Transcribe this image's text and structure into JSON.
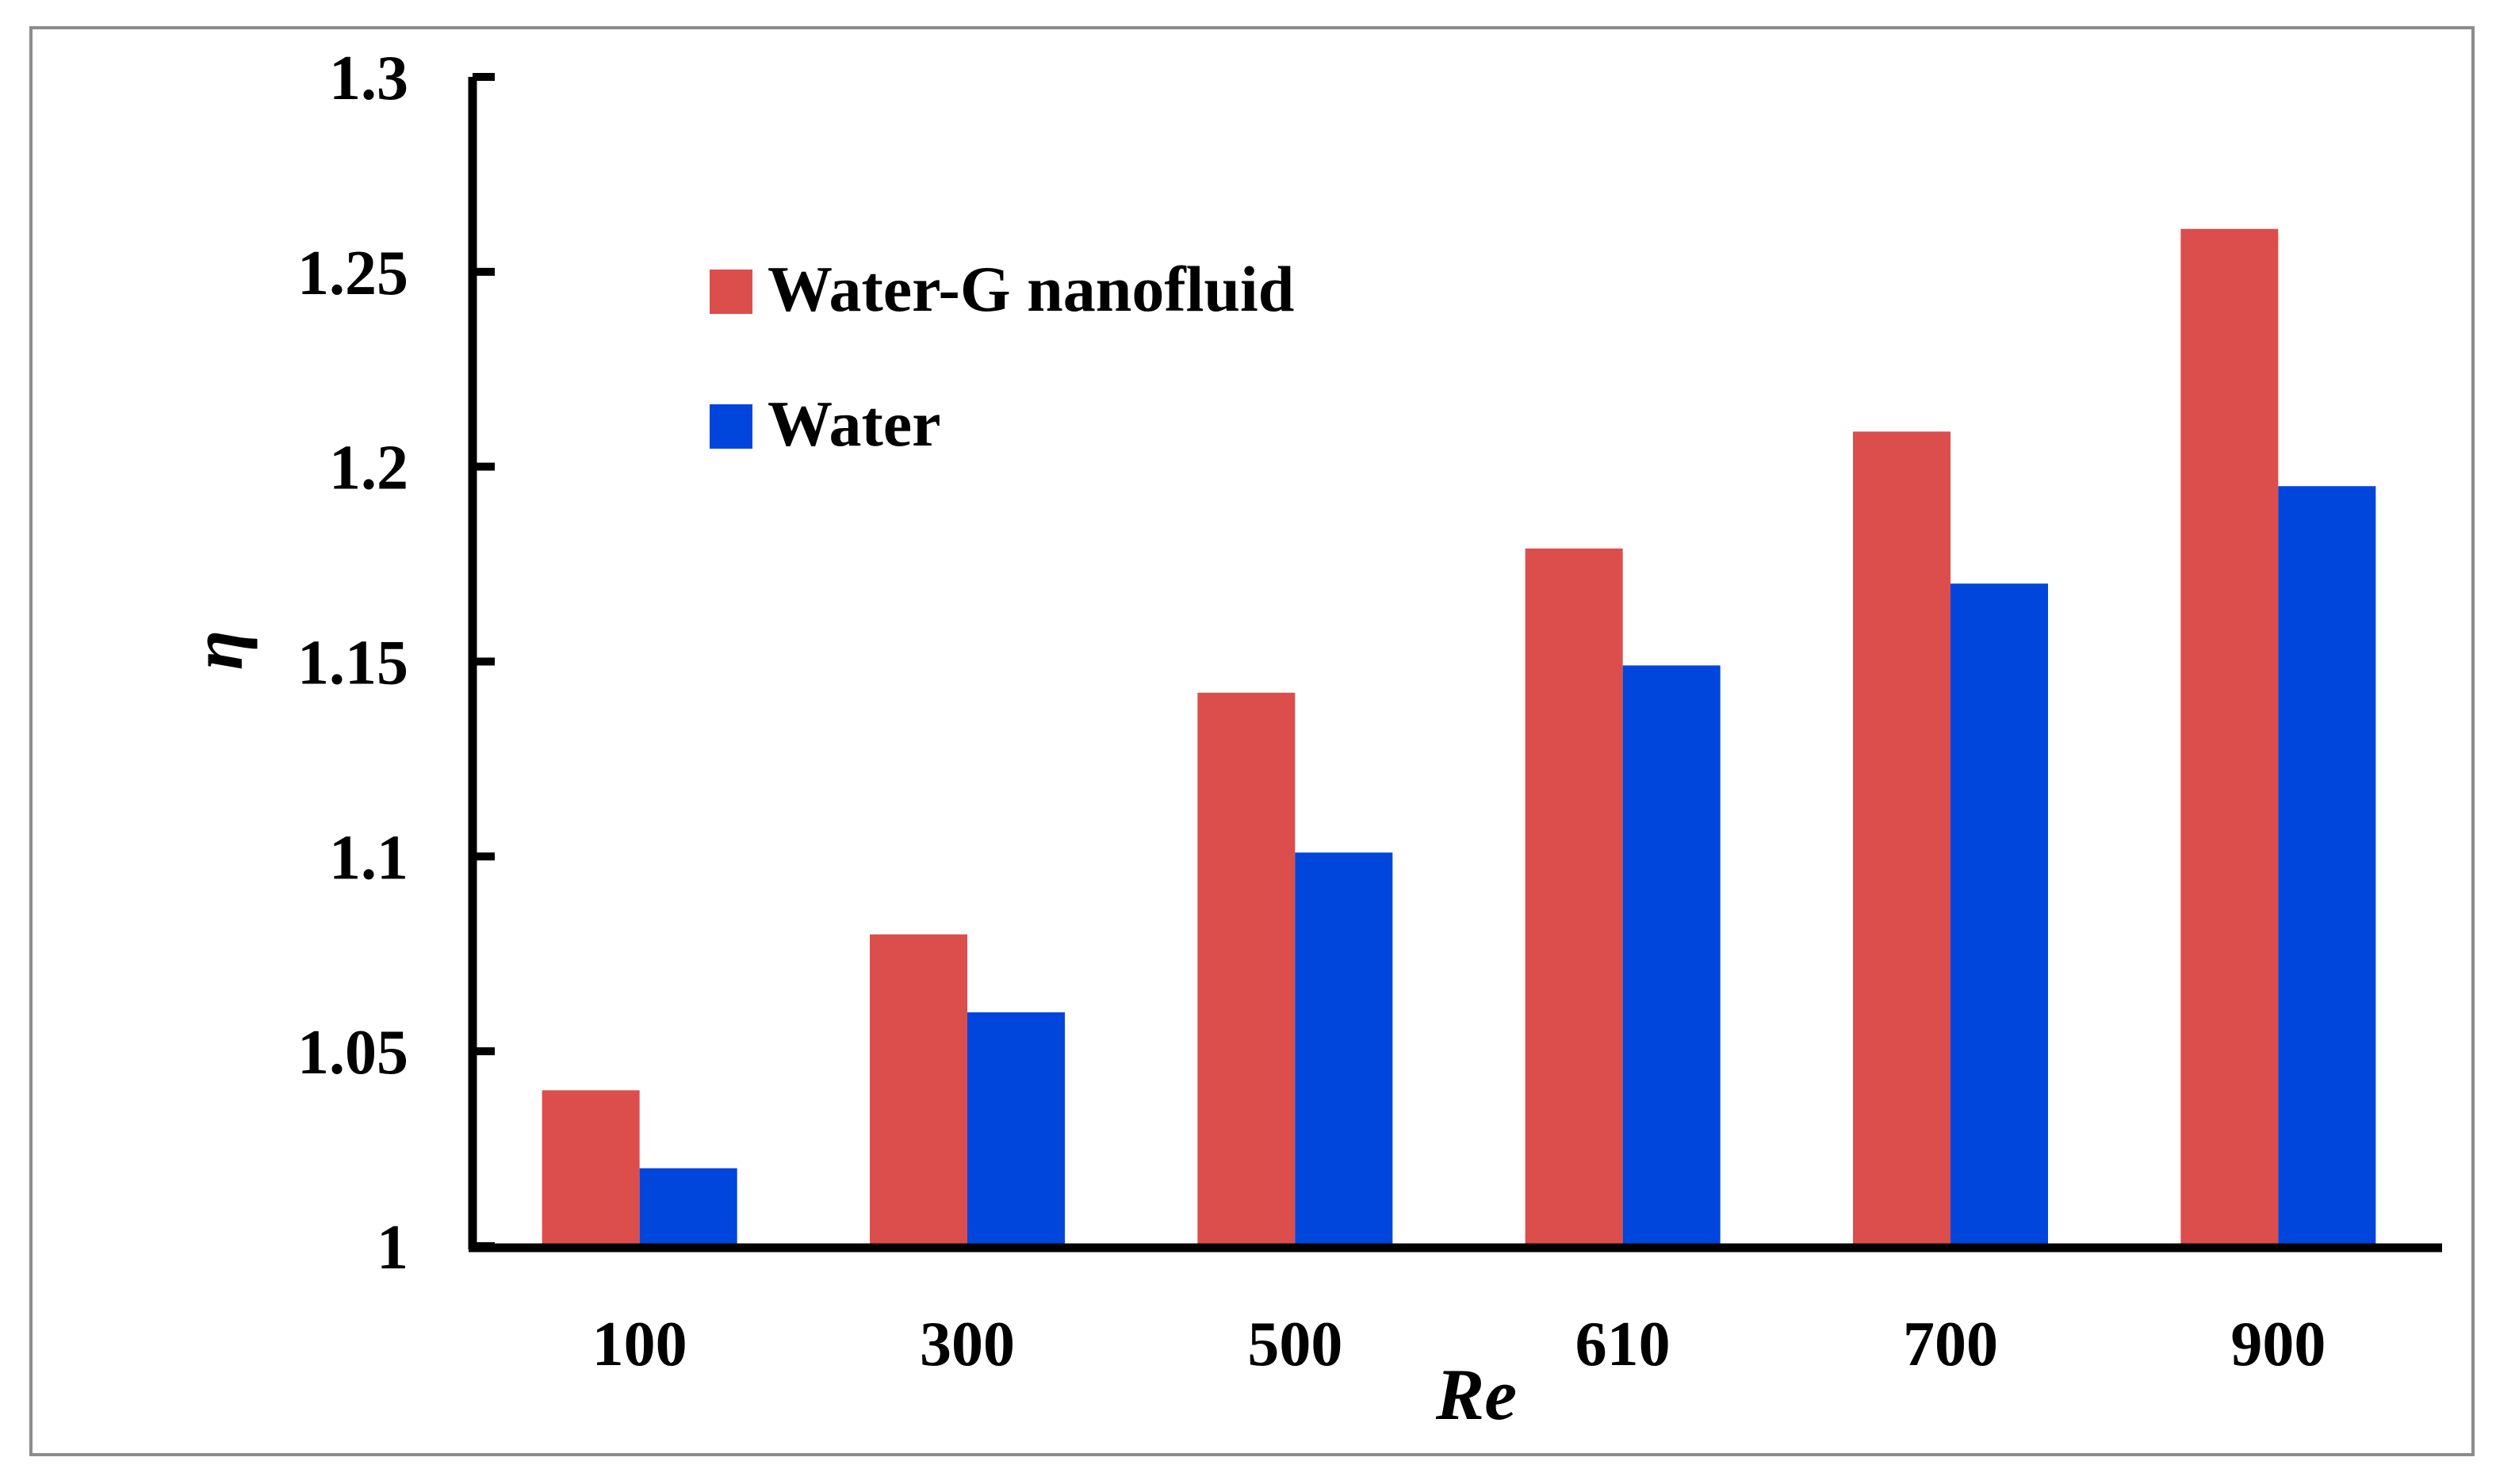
{
  "chart_data": {
    "type": "bar",
    "title": "",
    "xlabel": "Re",
    "ylabel": "η",
    "categories": [
      "100",
      "300",
      "500",
      "610",
      "700",
      "900"
    ],
    "series": [
      {
        "name": "Water-G nanofluid",
        "color": "#DC4E4C",
        "values": [
          1.04,
          1.08,
          1.142,
          1.179,
          1.209,
          1.261
        ]
      },
      {
        "name": "Water",
        "color": "#0046DC",
        "values": [
          1.02,
          1.06,
          1.101,
          1.149,
          1.17,
          1.195
        ]
      }
    ],
    "ylim": [
      1,
      1.3
    ],
    "yticks": [
      "1",
      "1.05",
      "1.1",
      "1.15",
      "1.2",
      "1.25",
      "1.3"
    ],
    "grid": false,
    "legend_position": "top-left"
  }
}
